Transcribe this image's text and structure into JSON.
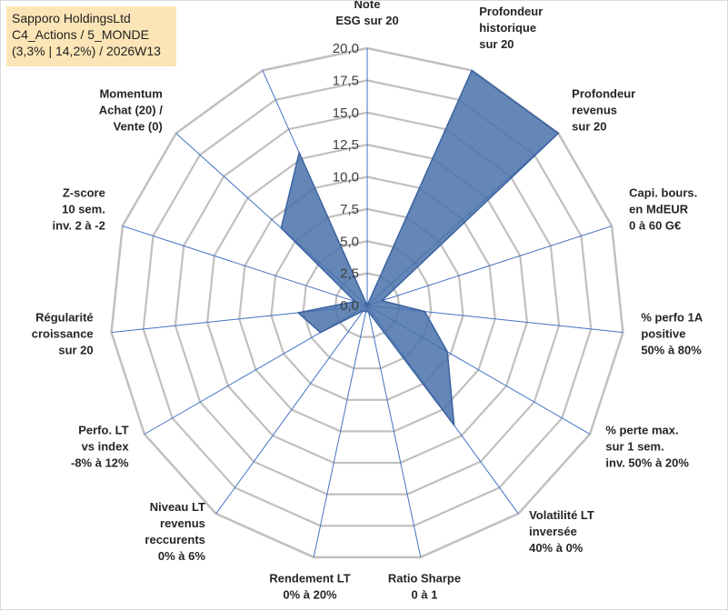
{
  "title_box": {
    "line1": "Sapporo HoldingsLtd",
    "line2": "C4_Actions / 5_MONDE",
    "line3": "(3,3% | 14,2%) / 2026W13"
  },
  "colors": {
    "fill": "#4a72aa",
    "stroke": "#3a62a0",
    "grid": "#c0c0c0",
    "spoke": "#4472c4",
    "title_bg": "#fbe5b6"
  },
  "chart_data": {
    "type": "radar",
    "rmin": 0,
    "rmax": 20,
    "ticks": [
      "0,0",
      "2,5",
      "5,0",
      "7,5",
      "10,0",
      "12,5",
      "15,0",
      "17,5",
      "20,0"
    ],
    "axes": [
      {
        "label": [
          "Note",
          "ESG sur 20"
        ],
        "value": 0
      },
      {
        "label": [
          "Profondeur",
          "historique",
          "sur 20"
        ],
        "value": 20
      },
      {
        "label": [
          "Profondeur",
          "revenus",
          "sur 20"
        ],
        "value": 20
      },
      {
        "label": [
          "Capi. bours.",
          "en MdEUR",
          "0 à 60 G€"
        ],
        "value": 1.2
      },
      {
        "label": [
          "% perfo 1A",
          "positive",
          "50% à 80%"
        ],
        "value": 4.5
      },
      {
        "label": [
          "% perte max.",
          "sur 1 sem.",
          "inv. 50% à 20%"
        ],
        "value": 7.2
      },
      {
        "label": [
          "Volatilité LT",
          "inversée",
          "40% à 0%"
        ],
        "value": 11.5
      },
      {
        "label": [
          "Ratio Sharpe",
          "0 à 1"
        ],
        "value": 0.5
      },
      {
        "label": [
          "Rendement LT",
          "0% à 20%"
        ],
        "value": 0.5
      },
      {
        "label": [
          "Niveau LT",
          "revenus",
          "reccurents",
          "0% à 6%"
        ],
        "value": 0.5
      },
      {
        "label": [
          "Perfo. LT",
          "vs index",
          "-8% à 12%"
        ],
        "value": 4.2
      },
      {
        "label": [
          "Régularité",
          "croissance",
          "sur 20"
        ],
        "value": 5.4
      },
      {
        "label": [
          "Z-score",
          "10 sem.",
          "inv. 2 à -2"
        ],
        "value": 1.0
      },
      {
        "label": [
          "Momentum",
          "Achat (20) /",
          "Vente (0)"
        ],
        "value": 9.0
      },
      {
        "label": [],
        "value": 13.0
      }
    ]
  }
}
